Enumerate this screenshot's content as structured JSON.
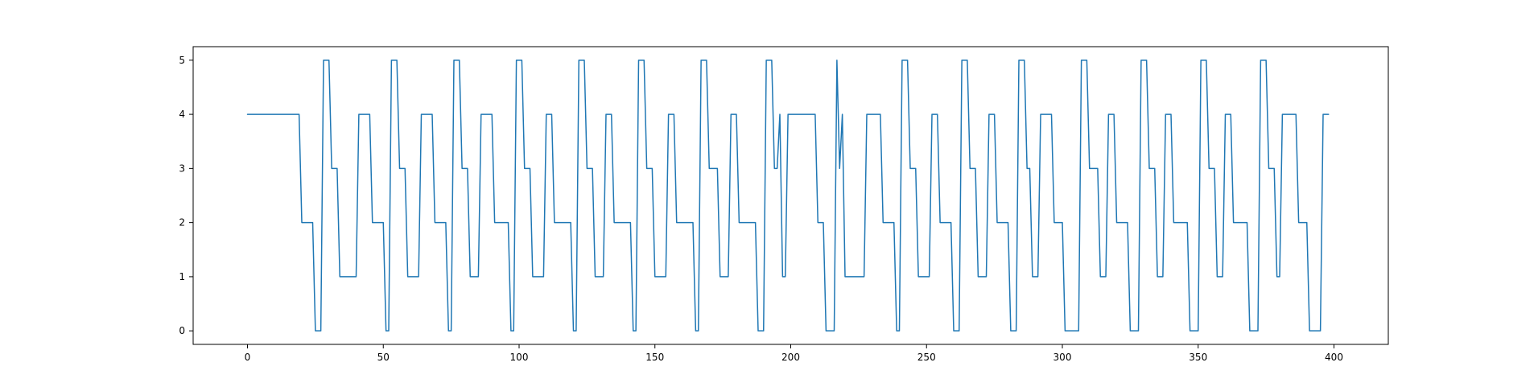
{
  "chart_data": {
    "type": "line",
    "title": "",
    "xlabel": "",
    "ylabel": "",
    "xlim": [
      -20,
      420
    ],
    "ylim": [
      -0.25,
      5.25
    ],
    "x_ticks": [
      0,
      50,
      100,
      150,
      200,
      250,
      300,
      350,
      400
    ],
    "x_tick_labels": [
      "0",
      "50",
      "100",
      "150",
      "200",
      "250",
      "300",
      "350",
      "400"
    ],
    "y_ticks": [
      0,
      1,
      2,
      3,
      4,
      5
    ],
    "y_tick_labels": [
      "0",
      "1",
      "2",
      "3",
      "4",
      "5"
    ],
    "grid": false,
    "legend": "none",
    "colors": {
      "series": "#1f77b4",
      "axes": "#000000",
      "background": "#ffffff"
    },
    "series": [
      {
        "x": [
          0,
          19,
          20,
          24,
          25,
          27,
          28,
          30,
          31,
          33,
          34,
          40,
          41,
          45,
          46,
          50,
          51,
          52,
          53,
          55,
          56,
          58,
          59,
          63,
          64,
          68,
          69,
          73,
          74,
          75,
          76,
          78,
          79,
          81,
          82,
          85,
          86,
          90,
          91,
          96,
          97,
          98,
          99,
          101,
          102,
          104,
          105,
          109,
          110,
          112,
          113,
          119,
          120,
          121,
          122,
          124,
          125,
          127,
          128,
          131,
          132,
          134,
          135,
          141,
          142,
          143,
          144,
          146,
          147,
          149,
          150,
          154,
          155,
          157,
          158,
          164,
          165,
          166,
          167,
          169,
          170,
          173,
          174,
          177,
          178,
          180,
          181,
          187,
          188,
          190,
          191,
          193,
          194,
          195,
          196,
          197,
          198,
          199,
          200,
          209,
          210,
          212,
          213,
          216,
          217,
          218,
          219,
          220,
          221,
          227,
          228,
          233,
          234,
          238,
          239,
          240,
          241,
          243,
          244,
          246,
          247,
          251,
          252,
          254,
          255,
          259,
          260,
          262,
          263,
          265,
          266,
          268,
          269,
          272,
          273,
          275,
          276,
          280,
          281,
          283,
          284,
          286,
          287,
          288,
          289,
          291,
          292,
          296,
          297,
          300,
          301,
          306,
          307,
          309,
          310,
          313,
          314,
          316,
          317,
          319,
          320,
          324,
          325,
          328,
          329,
          331,
          332,
          334,
          335,
          337,
          338,
          340,
          341,
          346,
          347,
          350,
          351,
          353,
          354,
          356,
          357,
          359,
          360,
          362,
          363,
          368,
          369,
          372,
          373,
          375,
          376,
          378,
          379,
          380,
          381,
          386,
          387,
          390,
          391,
          395,
          396,
          398
        ],
        "y": [
          4,
          4,
          2,
          2,
          0,
          0,
          5,
          5,
          3,
          3,
          1,
          1,
          4,
          4,
          2,
          2,
          0,
          0,
          5,
          5,
          3,
          3,
          1,
          1,
          4,
          4,
          2,
          2,
          0,
          0,
          5,
          5,
          3,
          3,
          1,
          1,
          4,
          4,
          2,
          2,
          0,
          0,
          5,
          5,
          3,
          3,
          1,
          1,
          4,
          4,
          2,
          2,
          0,
          0,
          5,
          5,
          3,
          3,
          1,
          1,
          4,
          4,
          2,
          2,
          0,
          0,
          5,
          5,
          3,
          3,
          1,
          1,
          4,
          4,
          2,
          2,
          0,
          0,
          5,
          5,
          3,
          3,
          1,
          1,
          4,
          4,
          2,
          2,
          0,
          0,
          5,
          5,
          3,
          3,
          4,
          1,
          1,
          4,
          4,
          4,
          2,
          2,
          0,
          0,
          5,
          3,
          4,
          1,
          1,
          1,
          4,
          4,
          2,
          2,
          0,
          0,
          5,
          5,
          3,
          3,
          1,
          1,
          4,
          4,
          2,
          2,
          0,
          0,
          5,
          5,
          3,
          3,
          1,
          1,
          4,
          4,
          2,
          2,
          0,
          0,
          5,
          5,
          3,
          3,
          1,
          1,
          4,
          4,
          2,
          2,
          0,
          0,
          5,
          5,
          3,
          3,
          1,
          1,
          4,
          4,
          2,
          2,
          0,
          0,
          5,
          5,
          3,
          3,
          1,
          1,
          4,
          4,
          2,
          2,
          0,
          0,
          5,
          5,
          3,
          3,
          1,
          1,
          4,
          4,
          2,
          2,
          0,
          0,
          5,
          5,
          3,
          3,
          1,
          1,
          4,
          4,
          2,
          2,
          0,
          0,
          4,
          4
        ]
      }
    ]
  }
}
